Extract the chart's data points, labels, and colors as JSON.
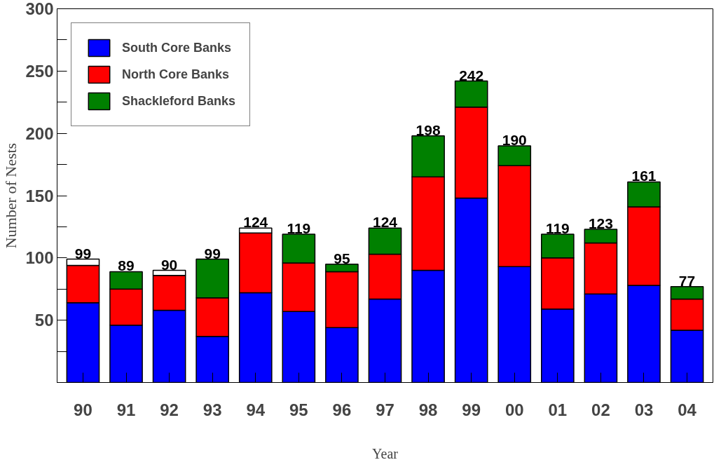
{
  "chart_data": {
    "type": "bar",
    "stacked": true,
    "xlabel": "Year",
    "ylabel": "Number of Nests",
    "categories": [
      "90",
      "91",
      "92",
      "93",
      "94",
      "95",
      "96",
      "97",
      "98",
      "99",
      "00",
      "01",
      "02",
      "03",
      "04"
    ],
    "series": [
      {
        "name": "South Core Banks",
        "color": "#0000ff",
        "values": [
          64,
          46,
          58,
          37,
          72,
          57,
          44,
          67,
          90,
          148,
          93,
          59,
          71,
          78,
          42
        ]
      },
      {
        "name": "North Core Banks",
        "color": "#ff0000",
        "values": [
          30,
          29,
          28,
          31,
          48,
          39,
          45,
          36,
          75,
          73,
          81,
          41,
          41,
          63,
          25
        ]
      },
      {
        "name": "Shackleford Banks",
        "color": "#008000",
        "values": [
          null,
          14,
          null,
          31,
          null,
          23,
          6,
          21,
          33,
          21,
          16,
          19,
          11,
          20,
          10
        ]
      },
      {
        "color": "#ffffff",
        "values": [
          5,
          null,
          4,
          null,
          4,
          null,
          null,
          null,
          null,
          null,
          null,
          null,
          null,
          null,
          null
        ]
      }
    ],
    "totals": [
      "99",
      "89",
      "90",
      "99",
      "124",
      "119",
      "95",
      "124",
      "198",
      "242",
      "190",
      "119",
      "123",
      "161",
      "77"
    ],
    "ylim": [
      0,
      300
    ],
    "yticks": [
      {
        "value": 25,
        "label": null
      },
      50,
      {
        "value": 75,
        "label": null
      },
      100,
      {
        "value": 125,
        "label": null
      },
      150,
      {
        "value": 175,
        "label": null
      },
      200,
      {
        "value": 225,
        "label": null
      },
      250,
      {
        "value": 275,
        "label": null
      },
      300
    ],
    "grid": false,
    "legend": "top left"
  }
}
